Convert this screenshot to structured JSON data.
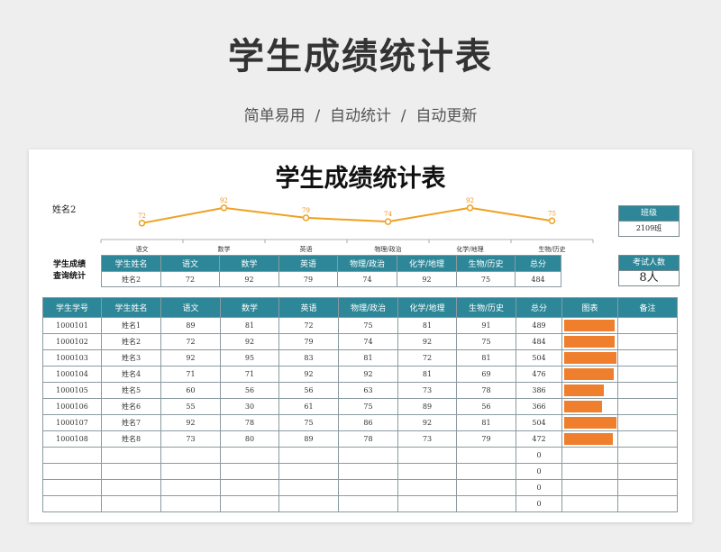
{
  "hero": {
    "title": "学生成绩统计表",
    "subtitle": "简单易用  /  自动统计  /  自动更新"
  },
  "sheet_title": "学生成绩统计表",
  "chart_data": {
    "type": "line",
    "title": "姓名2",
    "categories": [
      "语文",
      "数学",
      "英语",
      "物理/政治",
      "化学/地理",
      "生物/历史"
    ],
    "values": [
      72,
      92,
      79,
      74,
      92,
      75
    ],
    "ylim": [
      0,
      100
    ],
    "data_labels": true,
    "grid": false,
    "colors": {
      "line": "#f0a020",
      "label": "#e89020"
    }
  },
  "class_box": {
    "header": "班级",
    "value": "2109班"
  },
  "count_box": {
    "header": "考试人数",
    "value": "8人"
  },
  "query": {
    "label": "学生成绩\n查询统计",
    "headers": [
      "学生姓名",
      "语文",
      "数学",
      "英语",
      "物理/政治",
      "化学/地理",
      "生物/历史",
      "总分"
    ],
    "row": [
      "姓名2",
      "72",
      "92",
      "79",
      "74",
      "92",
      "75",
      "484"
    ]
  },
  "table": {
    "headers": [
      "学生学号",
      "学生姓名",
      "语文",
      "数学",
      "英语",
      "物理/政治",
      "化学/地理",
      "生物/历史",
      "总分",
      "图表",
      "备注"
    ],
    "rows": [
      {
        "id": "1000101",
        "name": "姓名1",
        "scores": [
          "89",
          "81",
          "72",
          "75",
          "81",
          "91"
        ],
        "total": "489",
        "bar": 489
      },
      {
        "id": "1000102",
        "name": "姓名2",
        "scores": [
          "72",
          "92",
          "79",
          "74",
          "92",
          "75"
        ],
        "total": "484",
        "bar": 484
      },
      {
        "id": "1000103",
        "name": "姓名3",
        "scores": [
          "92",
          "95",
          "83",
          "81",
          "72",
          "81"
        ],
        "total": "504",
        "bar": 504
      },
      {
        "id": "1000104",
        "name": "姓名4",
        "scores": [
          "71",
          "71",
          "92",
          "92",
          "81",
          "69"
        ],
        "total": "476",
        "bar": 476
      },
      {
        "id": "1000105",
        "name": "姓名5",
        "scores": [
          "60",
          "56",
          "56",
          "63",
          "73",
          "78"
        ],
        "total": "386",
        "bar": 386
      },
      {
        "id": "1000106",
        "name": "姓名6",
        "scores": [
          "55",
          "30",
          "61",
          "75",
          "89",
          "56"
        ],
        "total": "366",
        "bar": 366
      },
      {
        "id": "1000107",
        "name": "姓名7",
        "scores": [
          "92",
          "78",
          "75",
          "86",
          "92",
          "81"
        ],
        "total": "504",
        "bar": 504
      },
      {
        "id": "1000108",
        "name": "姓名8",
        "scores": [
          "73",
          "80",
          "89",
          "78",
          "73",
          "79"
        ],
        "total": "472",
        "bar": 472
      },
      {
        "id": "",
        "name": "",
        "scores": [
          "",
          "",
          "",
          "",
          "",
          ""
        ],
        "total": "0",
        "bar": 0
      },
      {
        "id": "",
        "name": "",
        "scores": [
          "",
          "",
          "",
          "",
          "",
          ""
        ],
        "total": "0",
        "bar": 0
      },
      {
        "id": "",
        "name": "",
        "scores": [
          "",
          "",
          "",
          "",
          "",
          ""
        ],
        "total": "0",
        "bar": 0
      },
      {
        "id": "",
        "name": "",
        "scores": [
          "",
          "",
          "",
          "",
          "",
          ""
        ],
        "total": "0",
        "bar": 0
      }
    ],
    "bar_max": 504,
    "bar_color": "#f07f2d"
  }
}
